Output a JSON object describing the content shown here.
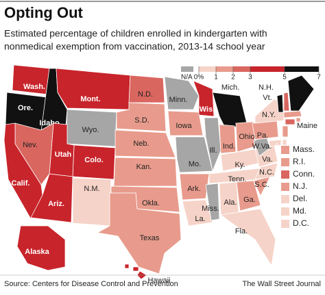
{
  "header": {
    "title": "Opting Out",
    "subtitle": [
      "Estimated percentage of children enrolled in kindergarten with",
      "nonmedical exemption from vaccination, 2013-14 school year"
    ]
  },
  "legend": {
    "na": {
      "label": "N/A",
      "color": "#a6a6a6"
    },
    "ticks": [
      {
        "value": 0,
        "label": "0%"
      },
      1,
      2,
      3,
      5,
      7
    ],
    "colors": [
      "#f6d3c8",
      "#e89b8c",
      "#d9665f",
      "#c8242b",
      "#111111"
    ]
  },
  "states": [
    {
      "label": "Wash.",
      "color": "#c8242b"
    },
    {
      "label": "Ore.",
      "color": "#111111"
    },
    {
      "label": "Idaho",
      "color": "#111111"
    },
    {
      "label": "Mont.",
      "color": "#c8242b"
    },
    {
      "label": "Wyo.",
      "color": "#a6a6a6"
    },
    {
      "label": "N.D.",
      "color": "#d9665f"
    },
    {
      "label": "S.D.",
      "color": "#e89b8c"
    },
    {
      "label": "Neb.",
      "color": "#e89b8c"
    },
    {
      "label": "Kan.",
      "color": "#e89b8c"
    },
    {
      "label": "Colo.",
      "color": "#c8242b"
    },
    {
      "label": "Utah",
      "color": "#c8242b"
    },
    {
      "label": "Nev.",
      "color": "#d9665f"
    },
    {
      "label": "Calif.",
      "color": "#c8242b"
    },
    {
      "label": "Ariz.",
      "color": "#c8242b"
    },
    {
      "label": "N.M.",
      "color": "#f6d3c8"
    },
    {
      "label": "Okla.",
      "color": "#e89b8c"
    },
    {
      "label": "Texas",
      "color": "#e89b8c"
    },
    {
      "label": "Minn.",
      "color": "#a6a6a6"
    },
    {
      "label": "Iowa",
      "color": "#e89b8c"
    },
    {
      "label": "Mo.",
      "color": "#a6a6a6"
    },
    {
      "label": "Ark.",
      "color": "#e89b8c"
    },
    {
      "label": "La.",
      "color": "#f6d3c8"
    },
    {
      "label": "Wis.",
      "color": "#c8242b"
    },
    {
      "label": "Ill.",
      "color": "#a6a6a6"
    },
    {
      "label": "Mich.",
      "color": "#111111"
    },
    {
      "label": "Ind.",
      "color": "#e89b8c"
    },
    {
      "label": "Ohio",
      "color": "#e89b8c"
    },
    {
      "label": "Ky.",
      "color": "#f6d3c8"
    },
    {
      "label": "Tenn.",
      "color": "#f6d3c8"
    },
    {
      "label": "Miss.",
      "color": "#a6a6a6"
    },
    {
      "label": "Ala.",
      "color": "#f6d3c8"
    },
    {
      "label": "Ga.",
      "color": "#e89b8c"
    },
    {
      "label": "Fla.",
      "color": "#f6d3c8"
    },
    {
      "label": "S.C.",
      "color": "#e89b8c"
    },
    {
      "label": "N.C.",
      "color": "#f6d3c8"
    },
    {
      "label": "Va.",
      "color": "#f6d3c8"
    },
    {
      "label": "W.Va.",
      "color": "#a6a6a6"
    },
    {
      "label": "Pa.",
      "color": "#e89b8c"
    },
    {
      "label": "N.Y.",
      "color": "#f6d3c8"
    },
    {
      "label": "Vt.",
      "color": "#111111"
    },
    {
      "label": "N.H.",
      "color": "#d9665f"
    },
    {
      "label": "Maine",
      "color": "#111111"
    },
    {
      "label": "Alaska",
      "color": "#c8242b"
    },
    {
      "label": "Hawaii",
      "color": "#c8242b"
    },
    {
      "label": "Mass.",
      "color": "#e89b8c"
    },
    {
      "label": "R.I.",
      "color": "#e89b8c"
    },
    {
      "label": "Conn.",
      "color": "#d9665f"
    },
    {
      "label": "N.J.",
      "color": "#e89b8c"
    },
    {
      "label": "Del.",
      "color": "#f6d3c8"
    },
    {
      "label": "Md.",
      "color": "#f6d3c8"
    },
    {
      "label": "D.C.",
      "color": "#f6d3c8"
    }
  ],
  "footer": {
    "source": "Source: Centers for Disease Control and Prevention",
    "credit": "The Wall Street Journal"
  }
}
